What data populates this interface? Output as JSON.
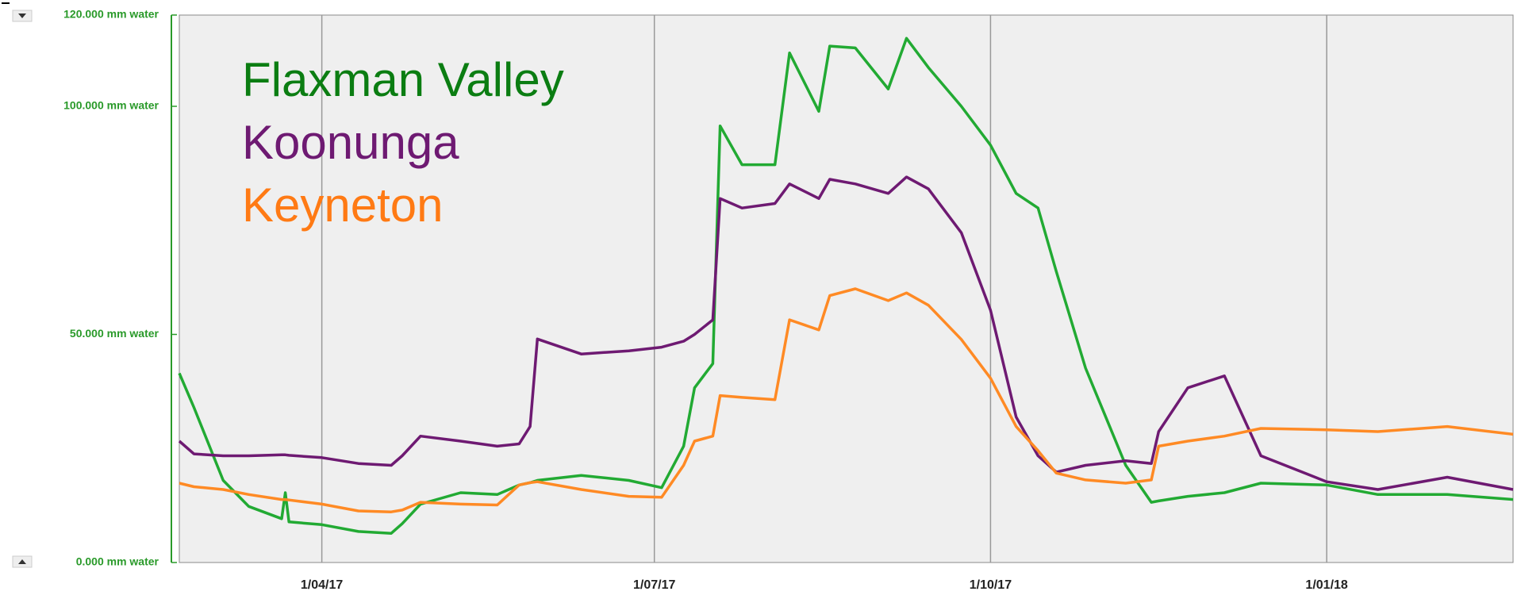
{
  "chart_data": {
    "type": "line",
    "x": [
      "2017-02-21",
      "2017-02-25",
      "2017-03-05",
      "2017-03-12",
      "2017-03-21",
      "2017-03-22",
      "2017-03-23",
      "2017-04-01",
      "2017-04-11",
      "2017-04-20",
      "2017-04-23",
      "2017-04-28",
      "2017-05-09",
      "2017-05-19",
      "2017-05-25",
      "2017-05-28",
      "2017-05-30",
      "2017-06-11",
      "2017-06-24",
      "2017-07-03",
      "2017-07-09",
      "2017-07-12",
      "2017-07-17",
      "2017-07-19",
      "2017-07-25",
      "2017-08-03",
      "2017-08-07",
      "2017-08-15",
      "2017-08-18",
      "2017-08-25",
      "2017-09-03",
      "2017-09-08",
      "2017-09-14",
      "2017-09-23",
      "2017-10-01",
      "2017-10-08",
      "2017-10-14",
      "2017-10-19",
      "2017-10-27",
      "2017-11-07",
      "2017-11-14",
      "2017-11-16",
      "2017-11-24",
      "2017-12-04",
      "2017-12-14",
      "2018-01-01",
      "2018-01-15",
      "2018-02-03",
      "2018-02-21"
    ],
    "series": [
      {
        "name": "Flaxman Valley",
        "color": "#22aa33",
        "label_color": "#0b7d12",
        "values": [
          41.5,
          34,
          18,
          12.3,
          9.6,
          15.3,
          8.9,
          8.3,
          6.8,
          6.4,
          8.5,
          12.8,
          15.3,
          14.9,
          17,
          17.5,
          18,
          19.1,
          18,
          16.4,
          25.5,
          38.3,
          43.6,
          95.7,
          87.2,
          87.2,
          111.7,
          98.9,
          113.2,
          112.8,
          103.8,
          114.9,
          108.5,
          100,
          91.5,
          80.9,
          77.7,
          63.8,
          42.6,
          21.3,
          13.2,
          13.5,
          14.5,
          15.3,
          17.4,
          17,
          14.9,
          14.9,
          13.8
        ]
      },
      {
        "name": "Koonunga",
        "color": "#6e1a72",
        "label_color": "#6e1a72",
        "values": [
          26.6,
          23.8,
          23.4,
          23.4,
          23.6,
          23.6,
          23.5,
          23,
          21.7,
          21.3,
          23.4,
          27.7,
          26.6,
          25.5,
          26,
          29.8,
          49,
          45.7,
          46.4,
          47.2,
          48.5,
          50,
          53.2,
          79.8,
          77.7,
          78.7,
          83,
          79.8,
          84,
          83,
          80.9,
          84.5,
          81.9,
          72.3,
          55.3,
          31.9,
          23.4,
          19.8,
          21.3,
          22.3,
          21.7,
          28.7,
          38.3,
          40.9,
          23.4,
          17.7,
          16,
          18.7,
          16
        ]
      },
      {
        "name": "Keyneton",
        "color": "#ff8a24",
        "label_color": "#ff7a14",
        "values": [
          17.4,
          16.6,
          16,
          14.9,
          13.8,
          13.8,
          13.7,
          12.8,
          11.3,
          11.1,
          11.5,
          13.2,
          12.8,
          12.6,
          17,
          17.5,
          17.7,
          16,
          14.5,
          14.3,
          21.3,
          26.6,
          27.7,
          36.6,
          36.2,
          35.7,
          53.2,
          51,
          58.5,
          60,
          57.4,
          59.1,
          56.4,
          48.9,
          40.4,
          29.8,
          24.5,
          19.6,
          18.1,
          17.4,
          18.1,
          25.5,
          26.6,
          27.7,
          29.4,
          29.1,
          28.7,
          29.8,
          28.1
        ]
      }
    ],
    "xlim": [
      "2017-02-21",
      "2018-02-21"
    ],
    "xticks": [
      {
        "value": "2017-04-01",
        "label": "1/04/17"
      },
      {
        "value": "2017-07-01",
        "label": "1/07/17"
      },
      {
        "value": "2017-10-01",
        "label": "1/10/17"
      },
      {
        "value": "2018-01-01",
        "label": "1/01/18"
      }
    ],
    "ylim": [
      0,
      120
    ],
    "yticks": [
      {
        "value": 0,
        "label": "0.000 mm water"
      },
      {
        "value": 50,
        "label": "50.000 mm water"
      },
      {
        "value": 100,
        "label": "100.000 mm water"
      },
      {
        "value": 120,
        "label": "120.000 mm water"
      }
    ],
    "axis_color": "#2a9a2a",
    "grid": true
  }
}
